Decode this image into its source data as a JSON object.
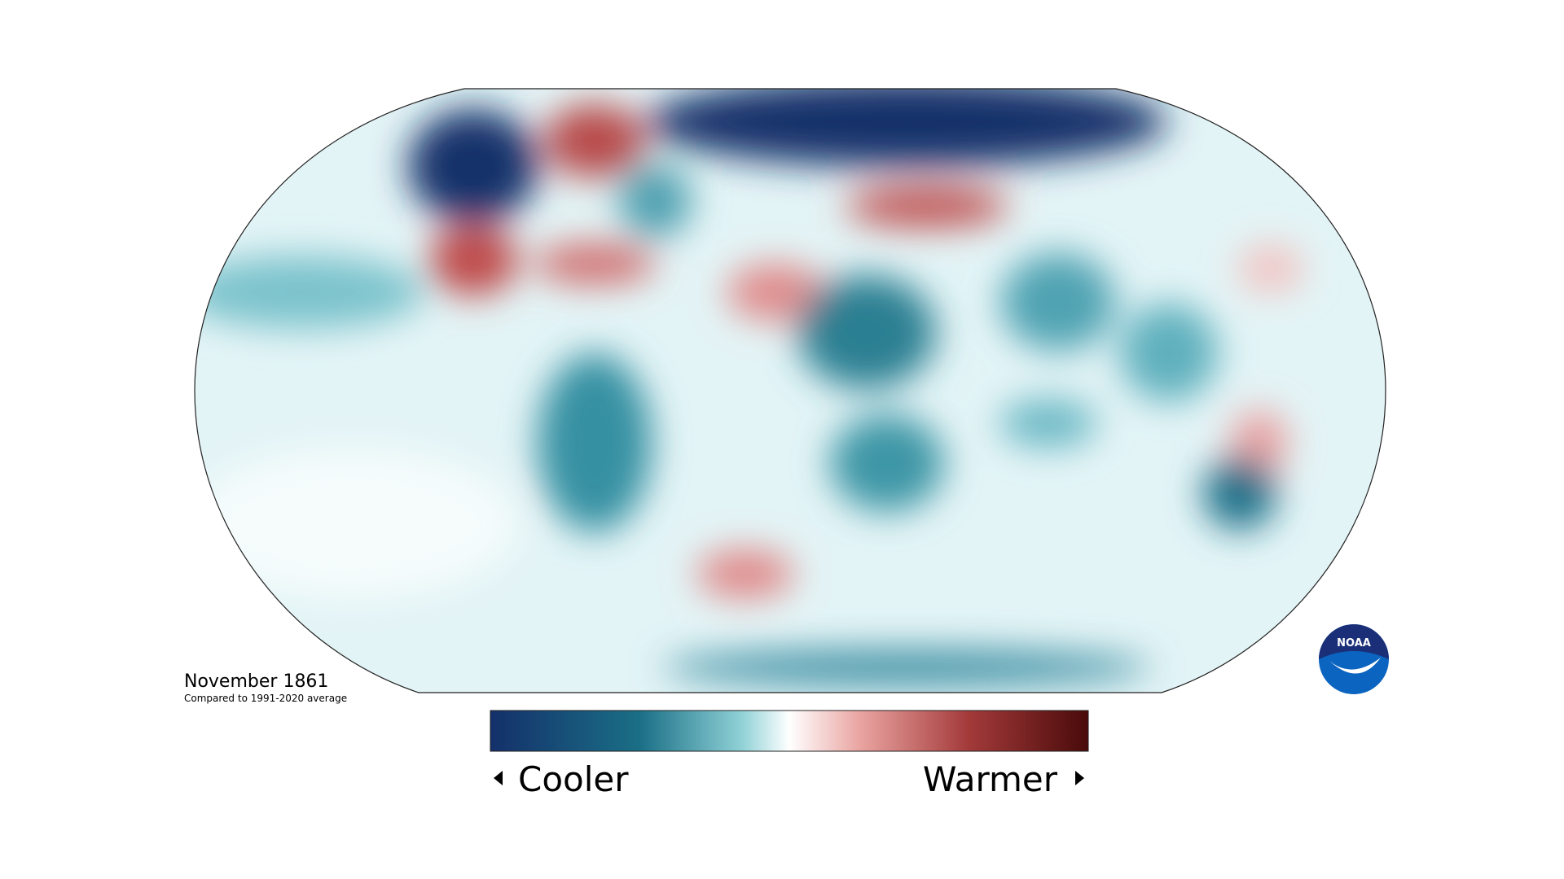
{
  "map": {
    "caption": {
      "title": "November 1861",
      "subtitle": "Compared to 1991-2020 average"
    },
    "colorbar": {
      "left_label": "Cooler",
      "right_label": "Warmer"
    },
    "logo": {
      "text": "NOAA"
    }
  }
}
